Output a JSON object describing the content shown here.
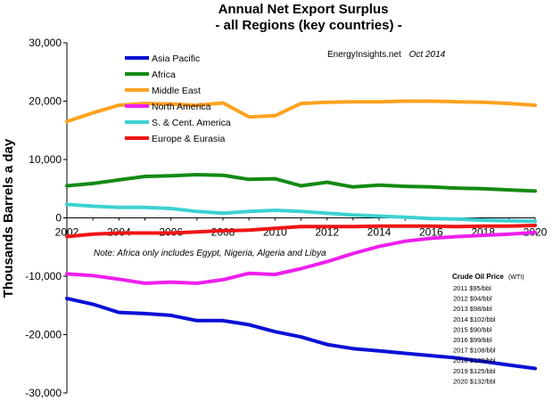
{
  "chart_data": {
    "type": "line",
    "title": "Annual Net Export Surplus",
    "subtitle": "- all Regions (key countries) -",
    "ylabel": "Thousands Barrels a day",
    "xlabel": "",
    "x": [
      2002,
      2003,
      2004,
      2005,
      2006,
      2007,
      2008,
      2009,
      2010,
      2011,
      2012,
      2013,
      2014,
      2015,
      2016,
      2017,
      2018,
      2019,
      2020
    ],
    "xticks": [
      "2002",
      "2004",
      "2006",
      "2008",
      "2010",
      "2012",
      "2014",
      "2016",
      "2018",
      "2020"
    ],
    "xlim": [
      2002,
      2020
    ],
    "ylim": [
      -30000,
      30000
    ],
    "yticks": [
      "30,000",
      "20,000",
      "10,000",
      "0",
      "-10,000",
      "-20,000",
      "-30,000"
    ],
    "ytick_values": [
      30000,
      20000,
      10000,
      0,
      -10000,
      -20000,
      -30000
    ],
    "grid": false,
    "legend_position": "top-left",
    "series": [
      {
        "name": "Asia Pacific",
        "color": "#0a10d6",
        "values": [
          -13800,
          -14800,
          -16200,
          -16400,
          -16700,
          -17600,
          -17600,
          -18300,
          -19500,
          -20400,
          -21700,
          -22400,
          -22800,
          -23200,
          -23600,
          -24000,
          -24600,
          -25200,
          -25800
        ]
      },
      {
        "name": "Africa",
        "color": "#138a13",
        "values": [
          5500,
          5900,
          6500,
          7100,
          7200,
          7400,
          7300,
          6600,
          6700,
          5500,
          6100,
          5300,
          5600,
          5400,
          5300,
          5100,
          5000,
          4800,
          4600
        ]
      },
      {
        "name": "Middle East",
        "color": "#ffa21f",
        "values": [
          16500,
          18000,
          19300,
          19600,
          19500,
          19300,
          19700,
          17300,
          17500,
          19600,
          19800,
          19900,
          19900,
          20000,
          20000,
          19900,
          19800,
          19600,
          19300
        ]
      },
      {
        "name": "North America",
        "color": "#ee1fee",
        "values": [
          -9600,
          -9900,
          -10500,
          -11200,
          -11000,
          -11200,
          -10600,
          -9500,
          -9700,
          -8700,
          -7500,
          -6100,
          -4900,
          -4000,
          -3500,
          -3200,
          -3000,
          -2800,
          -2500
        ]
      },
      {
        "name": "S. & Cent. America",
        "color": "#3dd1d1",
        "values": [
          2300,
          2000,
          1800,
          1800,
          1600,
          1100,
          800,
          1100,
          1300,
          1100,
          800,
          500,
          300,
          100,
          -100,
          -200,
          -400,
          -500,
          -600
        ]
      },
      {
        "name": "Europe & Eurasia",
        "color": "#ee1515",
        "values": [
          -3200,
          -2800,
          -2600,
          -2600,
          -2600,
          -2400,
          -2200,
          -2100,
          -1800,
          -1500,
          -1500,
          -1500,
          -1400,
          -1400,
          -1400,
          -1500,
          -1400,
          -1400,
          -1300
        ]
      }
    ],
    "annotations": {
      "source": "EnergyInsights.net",
      "date": "Oct 2014",
      "note": "Note: Africa only includes Egypt, Nigeria, Algeria and Libya"
    },
    "price_table": {
      "title": "Crude Oil Price",
      "title_suffix": "(WTI)",
      "rows": [
        "2011 $95/bbl",
        "2012 $94/bbl",
        "2013 $98/bbl",
        "2014 $102/bbl",
        "2015 $90/bbl",
        "2016 $99/bbl",
        "2017 $108/bbl",
        "2018 $120/bbl",
        "2019 $125/bbl",
        "2020 $132/bbl"
      ]
    }
  }
}
